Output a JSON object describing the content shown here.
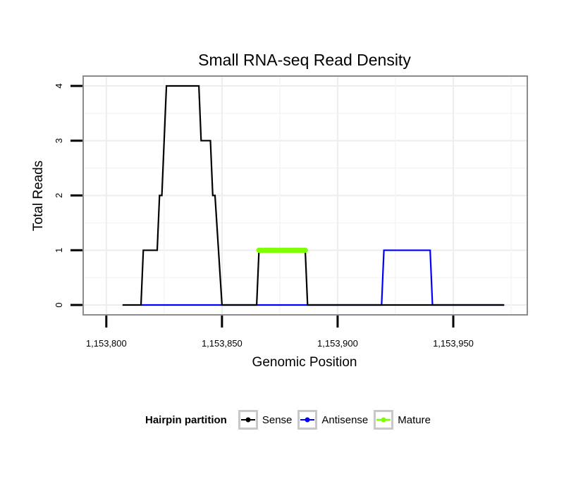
{
  "chart_data": {
    "type": "line",
    "title": "Small RNA-seq Read Density",
    "xlabel": "Genomic Position",
    "ylabel": "Total Reads",
    "xlim": [
      1153800,
      1153977
    ],
    "ylim": [
      0,
      4
    ],
    "x_ticks": [
      1153800,
      1153850,
      1153900,
      1153950
    ],
    "x_tick_labels": [
      "1,153,800",
      "1,153,850",
      "1,153,900",
      "1,153,950"
    ],
    "y_ticks": [
      0,
      1,
      2,
      3,
      4
    ],
    "y_tick_labels": [
      "0",
      "1",
      "2",
      "3",
      "4"
    ],
    "grid": true,
    "legend_position": "bottom",
    "legend_title": "Hairpin partition",
    "series": [
      {
        "name": "Sense",
        "color": "#000000",
        "x": [
          1153807,
          1153815,
          1153816,
          1153822,
          1153823,
          1153824,
          1153826,
          1153840,
          1153841,
          1153845,
          1153846,
          1153847,
          1153850,
          1153865,
          1153866,
          1153886,
          1153887,
          1153972
        ],
        "y": [
          0,
          0,
          1,
          1,
          2,
          2,
          4,
          4,
          3,
          3,
          2,
          2,
          0,
          0,
          1,
          1,
          0,
          0
        ]
      },
      {
        "name": "Antisense",
        "color": "#0000ff",
        "x": [
          1153815,
          1153919,
          1153920,
          1153940,
          1153941,
          1153972
        ],
        "y": [
          0,
          0,
          1,
          1,
          0,
          0
        ]
      },
      {
        "name": "Mature",
        "color": "#7fff00",
        "x": [
          1153866,
          1153867,
          1153868,
          1153869,
          1153870,
          1153871,
          1153872,
          1153873,
          1153874,
          1153875,
          1153876,
          1153877,
          1153878,
          1153879,
          1153880,
          1153881,
          1153882,
          1153883,
          1153884,
          1153885,
          1153886
        ],
        "y": [
          1,
          1,
          1,
          1,
          1,
          1,
          1,
          1,
          1,
          1,
          1,
          1,
          1,
          1,
          1,
          1,
          1,
          1,
          1,
          1,
          1
        ]
      }
    ]
  }
}
